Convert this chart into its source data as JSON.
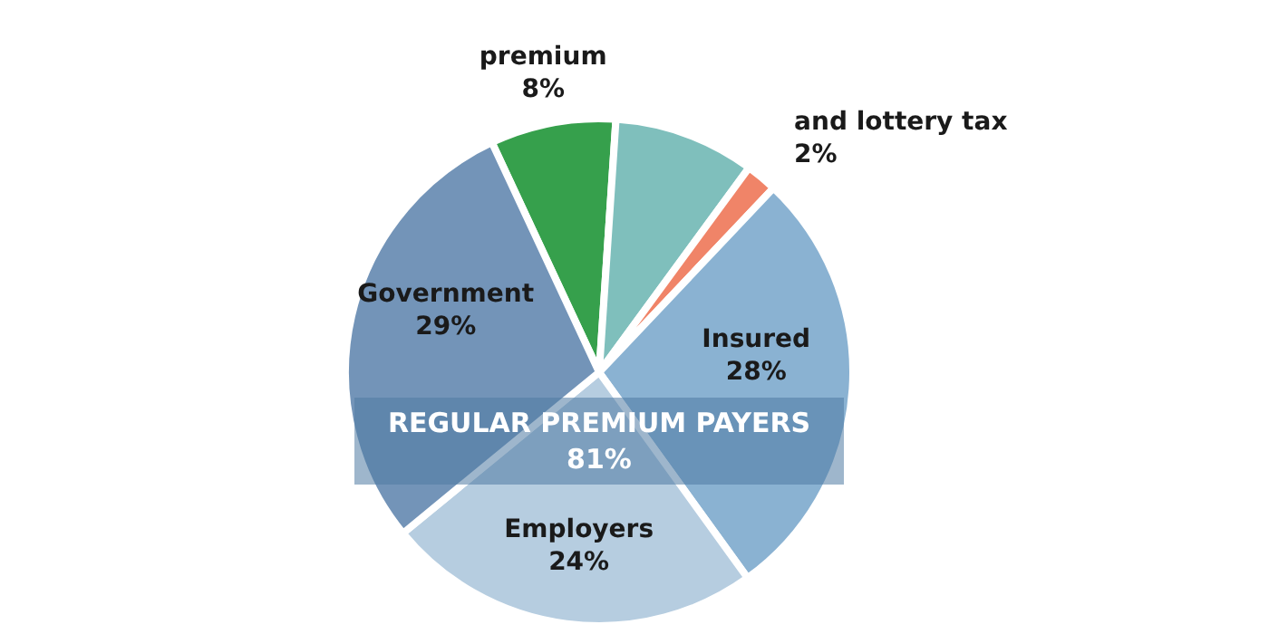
{
  "chart_data": {
    "type": "pie",
    "categories": [
      "premium",
      null,
      "and lottery tax",
      "Insured",
      "Employers",
      "Government"
    ],
    "values": [
      8,
      9,
      2,
      28,
      24,
      29
    ],
    "colors": [
      "#36a04c",
      "#7fbfbc",
      "#f08468",
      "#8ab2d2",
      "#b6cde0",
      "#7394b8"
    ],
    "value_labels": [
      "8%",
      null,
      "2%",
      "28%",
      "24%",
      "29%"
    ],
    "annotations": [
      "REGULAR PREMIUM PAYERS",
      "81%"
    ]
  }
}
